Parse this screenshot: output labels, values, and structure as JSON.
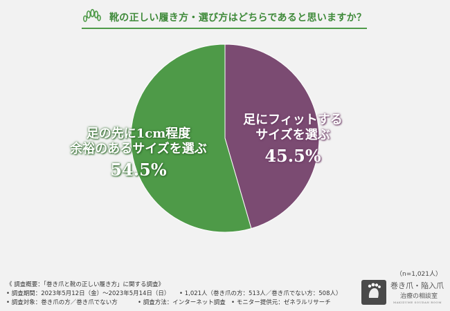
{
  "title": "靴の正しい履き方・選び方はどちらであると思いますか？",
  "header_icon": "foot-outline-icon",
  "chart_data": {
    "type": "pie",
    "title": "靴の正しい履き方・選び方はどちらであると思いますか？",
    "slices": [
      {
        "label_lines": [
          "足にフィットする",
          "サイズを選ぶ"
        ],
        "value": 45.5,
        "value_label": "45.5%",
        "color": "#7b4b72"
      },
      {
        "label_lines": [
          "足の先に1cm程度",
          "余裕のあるサイズを選ぶ"
        ],
        "value": 54.5,
        "value_label": "54.5%",
        "color": "#4e9a48"
      }
    ],
    "start": "12 o'clock",
    "direction": "clockwise",
    "legend": "none"
  },
  "n_label": "（n=1,021人）",
  "survey": {
    "heading": "《 調査概要：「巻き爪と靴の正しい履き方」に関する調査》",
    "period": "• 調査期間：2023年5月12日（金）〜2023年5月14日（日）",
    "count": "• 1,021人（巻き爪の方：513人／巻き爪でない方：508人）",
    "target": "• 調査対象：巻き爪の方／巻き爪でない方",
    "method": "• 調査方法：インターネット調査",
    "monitor": "• モニター提供元：ゼネラルリサーチ"
  },
  "logo": {
    "icon": "foot-logo-icon",
    "line1": "巻き爪・陥入爪",
    "line2": "治療の相談室",
    "line3": "MAKIZUME SOUDAN ROOM"
  }
}
